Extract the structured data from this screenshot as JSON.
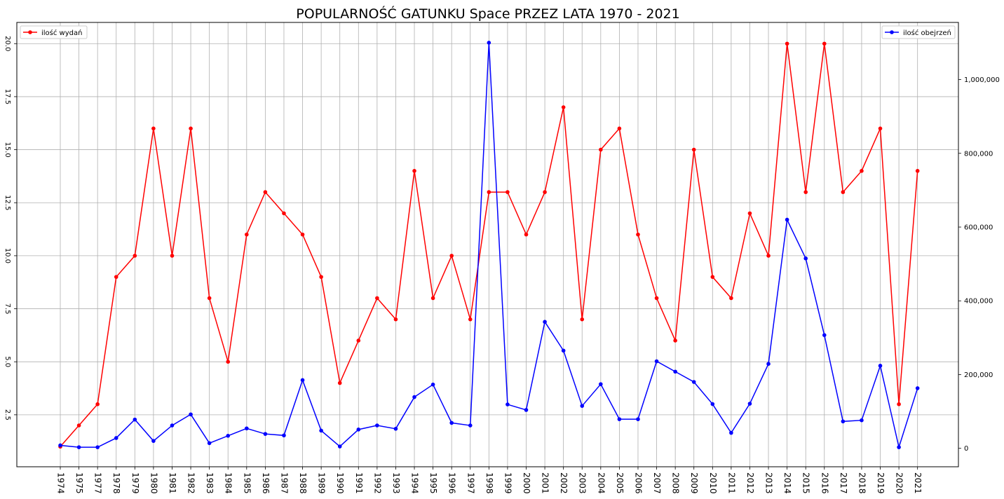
{
  "chart_data": {
    "type": "line",
    "title": "POPULARNOŚĆ GATUNKU Space PRZEZ LATA 1970 - 2021",
    "x": [
      "1974",
      "1975",
      "1977",
      "1978",
      "1979",
      "1980",
      "1981",
      "1982",
      "1983",
      "1984",
      "1985",
      "1986",
      "1987",
      "1988",
      "1989",
      "1990",
      "1991",
      "1992",
      "1993",
      "1994",
      "1995",
      "1996",
      "1997",
      "1998",
      "1999",
      "2000",
      "2001",
      "2002",
      "2003",
      "2004",
      "2005",
      "2006",
      "2007",
      "2008",
      "2009",
      "2010",
      "2011",
      "2012",
      "2013",
      "2014",
      "2015",
      "2016",
      "2017",
      "2018",
      "2019",
      "2020",
      "2021"
    ],
    "series": [
      {
        "name": "ilość wydań",
        "axis": "left",
        "color": "#ff0000",
        "values": [
          1,
          2,
          3,
          9,
          10,
          16,
          10,
          16,
          8,
          5,
          11,
          13,
          12,
          11,
          9,
          4,
          6,
          8,
          7,
          14,
          8,
          10,
          7,
          13,
          13,
          11,
          13,
          17,
          7,
          15,
          16,
          11,
          8,
          6,
          15,
          9,
          8,
          12,
          10,
          20,
          13,
          20,
          13,
          14,
          16,
          3,
          14
        ]
      },
      {
        "name": "ilość obejrzeń",
        "axis": "right",
        "color": "#0000ff",
        "values": [
          8000,
          3000,
          3000,
          28000,
          78000,
          20000,
          62000,
          92000,
          14000,
          34000,
          54000,
          39000,
          35000,
          185000,
          48000,
          5000,
          51000,
          62000,
          53000,
          139000,
          173000,
          69000,
          62000,
          1100000,
          119000,
          104000,
          343000,
          265000,
          115000,
          174000,
          79000,
          79000,
          236000,
          208000,
          180000,
          120000,
          42000,
          121000,
          229000,
          620000,
          515000,
          307000,
          73000,
          76000,
          224000,
          3000,
          163000
        ]
      }
    ],
    "y_left": {
      "ticks": [
        "2.5",
        "5.0",
        "7.5",
        "10.0",
        "12.5",
        "15.0",
        "17.5",
        "20.0"
      ],
      "range": [
        0.05,
        21
      ]
    },
    "y_right": {
      "ticks": [
        "0",
        "200,000",
        "400,000",
        "600,000",
        "800,000",
        "1,000,000"
      ],
      "range": [
        -50000,
        1155000
      ]
    },
    "grid": true,
    "legend": [
      {
        "position": "top-left",
        "label": "ilość wydań"
      },
      {
        "position": "top-right",
        "label": "ilość obejrzeń"
      }
    ]
  }
}
